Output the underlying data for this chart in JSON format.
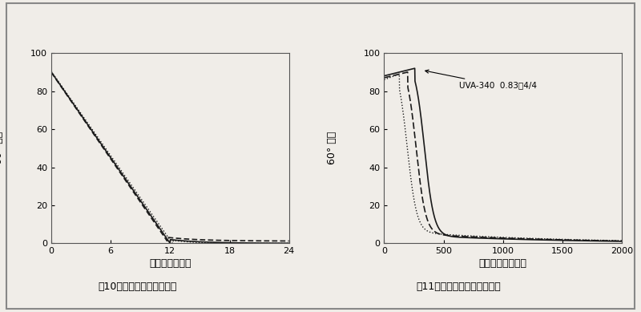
{
  "fig10_title": "图10－环氧树脂、户外老化",
  "fig11_title": "图11－环氧树脂、实验室老化",
  "ylabel": "60° 光泽",
  "fig10_xlabel": "曝晒时间（月）",
  "fig11_xlabel": "曝晒时间（小时）",
  "fig10_xlim": [
    0,
    24
  ],
  "fig10_ylim": [
    0,
    100
  ],
  "fig11_xlim": [
    0,
    2000
  ],
  "fig11_ylim": [
    0,
    100
  ],
  "fig10_xticks": [
    0,
    6,
    12,
    18,
    24
  ],
  "fig10_yticks": [
    0,
    20,
    40,
    60,
    80,
    100
  ],
  "fig11_xticks": [
    0,
    500,
    1000,
    1500,
    2000
  ],
  "fig11_yticks": [
    0,
    20,
    40,
    60,
    80,
    100
  ],
  "annotation_text": "UVA-340  0.83，4/4",
  "bg_color": "#f0ede8",
  "line_color": "#1a1a1a",
  "font_size_label": 9,
  "font_size_title": 9
}
